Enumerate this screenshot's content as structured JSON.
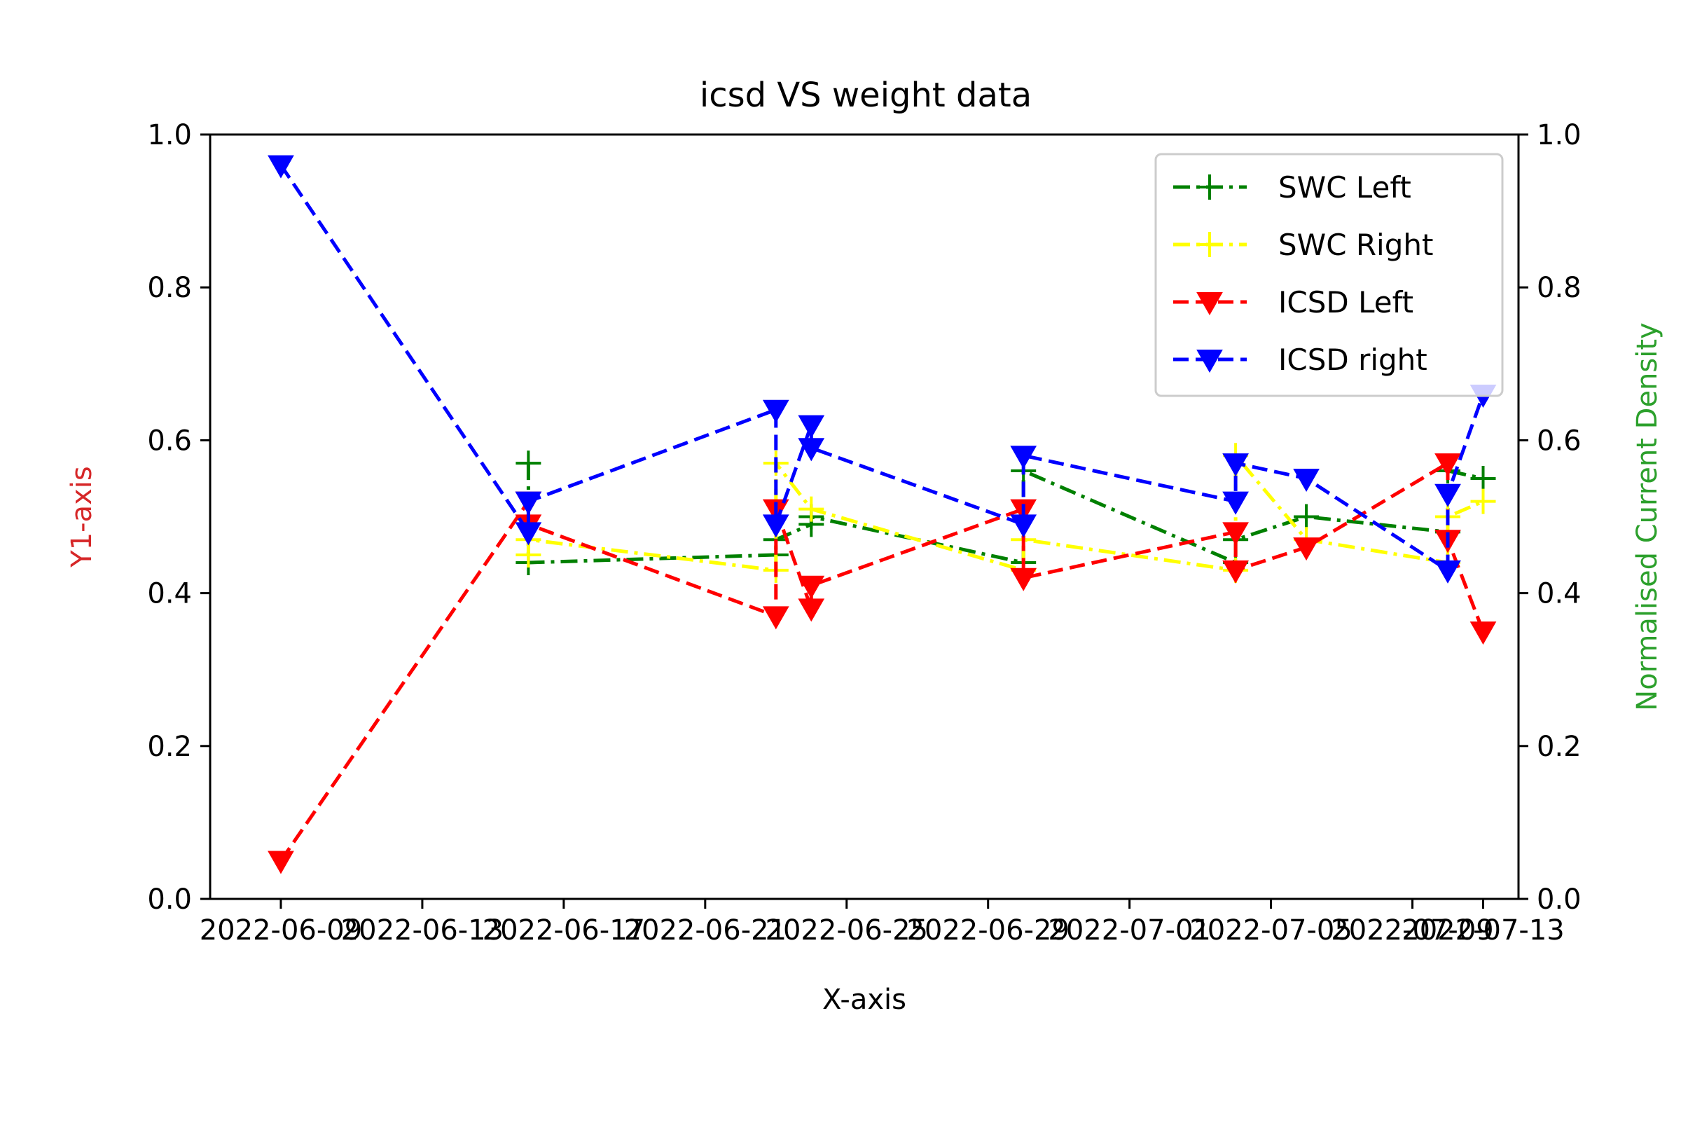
{
  "chart_data": {
    "type": "line",
    "title": "icsd VS weight data",
    "xlabel": "X-axis",
    "ylabel": "Y1-axis",
    "y2label": "Normalised Current Density",
    "ylim": [
      0.0,
      1.0
    ],
    "y2lim": [
      0.0,
      1.0
    ],
    "xlim": [
      "2022-06-07",
      "2022-07-14"
    ],
    "x_ticks": [
      "2022-06-09",
      "2022-06-13",
      "2022-06-17",
      "2022-06-21",
      "2022-06-25",
      "2022-06-29",
      "2022-07-01",
      "2022-07-05",
      "2022-07-09",
      "2022-07-13"
    ],
    "y_ticks": [
      "0.0",
      "0.2",
      "0.4",
      "0.6",
      "0.8",
      "1.0"
    ],
    "y2_ticks": [
      "0.0",
      "0.2",
      "0.4",
      "0.6",
      "0.8",
      "1.0"
    ],
    "grid": false,
    "legend_position": "top-right",
    "colors": {
      "y1label": "#d62728",
      "y2label": "#2ca02c"
    },
    "series": [
      {
        "name": "SWC Left",
        "color": "#008000",
        "dash": "dashdot",
        "marker": "plus",
        "axis": "y2",
        "points": [
          [
            "2022-06-16",
            0.57
          ],
          [
            "2022-06-16",
            0.44
          ],
          [
            "2022-06-23",
            0.45
          ],
          [
            "2022-06-23",
            0.47
          ],
          [
            "2022-06-24",
            0.49
          ],
          [
            "2022-06-24",
            0.5
          ],
          [
            "2022-06-30",
            0.44
          ],
          [
            "2022-06-30",
            0.56
          ],
          [
            "2022-07-06",
            0.44
          ],
          [
            "2022-07-06",
            0.47
          ],
          [
            "2022-07-08",
            0.5
          ],
          [
            "2022-07-12",
            0.48
          ],
          [
            "2022-07-12",
            0.56
          ],
          [
            "2022-07-13",
            0.55
          ]
        ]
      },
      {
        "name": "SWC Right",
        "color": "#ffff00",
        "dash": "dashdot",
        "marker": "plus",
        "axis": "y2",
        "points": [
          [
            "2022-06-16",
            0.45
          ],
          [
            "2022-06-16",
            0.47
          ],
          [
            "2022-06-23",
            0.43
          ],
          [
            "2022-06-23",
            0.57
          ],
          [
            "2022-06-24",
            0.51
          ],
          [
            "2022-06-30",
            0.43
          ],
          [
            "2022-06-30",
            0.47
          ],
          [
            "2022-07-06",
            0.43
          ],
          [
            "2022-07-06",
            0.58
          ],
          [
            "2022-07-08",
            0.47
          ],
          [
            "2022-07-12",
            0.44
          ],
          [
            "2022-07-12",
            0.5
          ],
          [
            "2022-07-13",
            0.52
          ]
        ]
      },
      {
        "name": "ICSD Left",
        "color": "#ff0000",
        "dash": "dashed",
        "marker": "triangle-down",
        "axis": "y1",
        "points": [
          [
            "2022-06-09",
            0.05
          ],
          [
            "2022-06-16",
            0.52
          ],
          [
            "2022-06-16",
            0.49
          ],
          [
            "2022-06-23",
            0.37
          ],
          [
            "2022-06-23",
            0.51
          ],
          [
            "2022-06-24",
            0.38
          ],
          [
            "2022-06-24",
            0.41
          ],
          [
            "2022-06-30",
            0.51
          ],
          [
            "2022-06-30",
            0.42
          ],
          [
            "2022-07-06",
            0.48
          ],
          [
            "2022-07-06",
            0.43
          ],
          [
            "2022-07-08",
            0.46
          ],
          [
            "2022-07-12",
            0.57
          ],
          [
            "2022-07-12",
            0.47
          ],
          [
            "2022-07-13",
            0.35
          ]
        ]
      },
      {
        "name": "ICSD right",
        "color": "#0000ff",
        "dash": "dashed",
        "marker": "triangle-down",
        "axis": "y1",
        "points": [
          [
            "2022-06-09",
            0.96
          ],
          [
            "2022-06-16",
            0.48
          ],
          [
            "2022-06-16",
            0.52
          ],
          [
            "2022-06-23",
            0.64
          ],
          [
            "2022-06-23",
            0.49
          ],
          [
            "2022-06-24",
            0.62
          ],
          [
            "2022-06-24",
            0.59
          ],
          [
            "2022-06-30",
            0.49
          ],
          [
            "2022-06-30",
            0.58
          ],
          [
            "2022-07-06",
            0.52
          ],
          [
            "2022-07-06",
            0.57
          ],
          [
            "2022-07-08",
            0.55
          ],
          [
            "2022-07-12",
            0.43
          ],
          [
            "2022-07-12",
            0.53
          ],
          [
            "2022-07-13",
            0.66
          ]
        ]
      }
    ]
  }
}
